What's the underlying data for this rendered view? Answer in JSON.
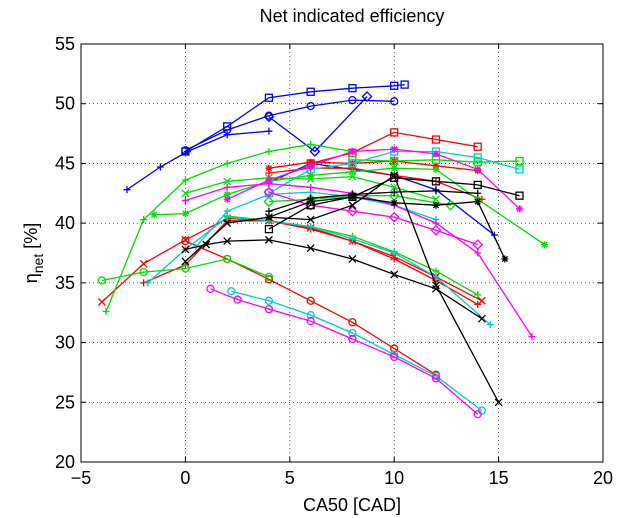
{
  "chart_data": {
    "type": "line",
    "title": "Net indicated efficiency",
    "xlabel": "CA50 [CAD]",
    "ylabel_main": "η",
    "ylabel_sub": "net",
    "ylabel_suffix": " [%]",
    "xlim": [
      -5,
      20
    ],
    "ylim": [
      20,
      55
    ],
    "xticks": [
      -5,
      0,
      5,
      10,
      15,
      20
    ],
    "yticks": [
      20,
      25,
      30,
      35,
      40,
      45,
      50,
      55
    ],
    "grid": true,
    "series": [
      {
        "color": "#0000ff",
        "marker": "+",
        "x": [
          -2.8,
          -1.2,
          0.1,
          2.0,
          4.0
        ],
        "y": [
          42.8,
          44.7,
          46.0,
          47.4,
          47.7
        ]
      },
      {
        "color": "#0000ff",
        "marker": "square",
        "x": [
          0.0,
          2.0,
          4.0,
          6.0,
          8.0,
          10.0,
          10.5
        ],
        "y": [
          46.0,
          48.1,
          50.5,
          51.0,
          51.3,
          51.5,
          51.6
        ]
      },
      {
        "color": "#0000ff",
        "marker": "circle",
        "x": [
          0.0,
          2.0,
          4.0,
          6.0,
          8.0,
          10.0
        ],
        "y": [
          46.1,
          47.8,
          49.0,
          49.8,
          50.3,
          50.2
        ]
      },
      {
        "color": "#0000ff",
        "marker": "diamond",
        "x": [
          4.0,
          6.2,
          8.7
        ],
        "y": [
          48.9,
          46.0,
          50.6
        ]
      },
      {
        "color": "#0000ff",
        "marker": "+",
        "x": [
          4.0,
          6.0,
          8.0,
          10.0,
          12.0,
          14.8
        ],
        "y": [
          43.4,
          45.0,
          44.5,
          44.0,
          42.8,
          39.0
        ]
      },
      {
        "color": "#ff0000",
        "marker": "square",
        "x": [
          6.0,
          8.0,
          10.0,
          12.0,
          14.0
        ],
        "y": [
          45.0,
          45.9,
          47.6,
          47.0,
          46.4
        ]
      },
      {
        "color": "#ff0000",
        "marker": "asterisk",
        "x": [
          4.0,
          6.0,
          8.0,
          10.0,
          12.0,
          14.0
        ],
        "y": [
          44.6,
          45.1,
          45.0,
          45.2,
          44.8,
          44.4
        ]
      },
      {
        "color": "#ff0000",
        "marker": "+",
        "x": [
          4.0,
          6.0,
          8.0,
          10.0,
          12.0,
          14.2
        ],
        "y": [
          44.2,
          44.6,
          44.6,
          44.0,
          43.5,
          42.0
        ]
      },
      {
        "color": "#ff0000",
        "marker": "x",
        "x": [
          -4.0,
          -2.0,
          0.0,
          2.0,
          4.0,
          6.0,
          8.0,
          10.0,
          12.0,
          14.2
        ],
        "y": [
          33.4,
          36.6,
          38.6,
          40.4,
          40.2,
          39.6,
          38.5,
          37.2,
          35.5,
          33.5
        ]
      },
      {
        "color": "#ff0000",
        "marker": "circle",
        "x": [
          0.0,
          2.0,
          4.0,
          6.0,
          8.0,
          10.0,
          12.0
        ],
        "y": [
          38.5,
          37.0,
          35.3,
          33.5,
          31.7,
          29.5,
          27.3
        ]
      },
      {
        "color": "#ff0000",
        "marker": "+",
        "x": [
          -2.0,
          0.0,
          2.0,
          4.0,
          6.0,
          8.0,
          10.0,
          12.0,
          14.0
        ],
        "y": [
          35.0,
          36.5,
          40.2,
          40.2,
          39.5,
          38.5,
          37.0,
          35.2,
          33.2
        ]
      },
      {
        "color": "#00dd00",
        "marker": "+",
        "x": [
          -3.8,
          -2.0,
          0.0,
          2.0,
          4.0,
          6.0,
          8.0
        ],
        "y": [
          32.6,
          40.3,
          43.6,
          45.0,
          46.0,
          46.6,
          46.0
        ]
      },
      {
        "color": "#00dd00",
        "marker": "asterisk",
        "x": [
          -1.5,
          0.0,
          2.0,
          4.0,
          6.0,
          8.0,
          10.0,
          12.0,
          14.0,
          17.2
        ],
        "y": [
          40.7,
          40.8,
          42.4,
          43.5,
          44.0,
          44.3,
          44.6,
          44.5,
          42.0,
          38.2
        ]
      },
      {
        "color": "#00dd00",
        "marker": "square",
        "x": [
          8.0,
          10.0,
          12.0,
          14.0,
          16.0
        ],
        "y": [
          45.3,
          45.2,
          45.3,
          45.1,
          45.2
        ]
      },
      {
        "color": "#00dd00",
        "marker": "diamond",
        "x": [
          4.0,
          6.0,
          8.0,
          10.0,
          12.7
        ],
        "y": [
          41.8,
          42.0,
          42.3,
          42.3,
          41.5
        ]
      },
      {
        "color": "#00dd00",
        "marker": "circle",
        "x": [
          -4.0,
          -2.0,
          0.0,
          2.0,
          4.0
        ],
        "y": [
          35.2,
          35.9,
          36.2,
          37.0,
          35.5
        ]
      },
      {
        "color": "#00dd00",
        "marker": "x",
        "x": [
          0.0,
          2.0,
          4.0,
          6.0,
          8.0,
          10.0,
          12.0
        ],
        "y": [
          42.5,
          43.5,
          43.8,
          43.7,
          43.9,
          43.0,
          42.0
        ]
      },
      {
        "color": "#00dd00",
        "marker": "+",
        "x": [
          2.0,
          4.0,
          6.0,
          8.0,
          10.0,
          12.0,
          14.0
        ],
        "y": [
          40.6,
          40.2,
          39.7,
          38.9,
          37.6,
          36.0,
          34.0
        ]
      },
      {
        "color": "#00cccc",
        "marker": "circle",
        "x": [
          2.2,
          4.0,
          6.0,
          8.0,
          10.0,
          12.0,
          14.2
        ],
        "y": [
          34.3,
          33.5,
          32.3,
          30.8,
          29.0,
          27.2,
          24.3
        ]
      },
      {
        "color": "#00cccc",
        "marker": "+",
        "x": [
          -1.8,
          0.0,
          2.0,
          4.0,
          6.0,
          8.0,
          10.0,
          12.0,
          14.6
        ],
        "y": [
          35.0,
          37.8,
          40.5,
          40.2,
          39.7,
          38.7,
          37.5,
          35.5,
          31.5
        ]
      },
      {
        "color": "#00cccc",
        "marker": "square",
        "x": [
          4.0,
          6.0,
          8.0,
          10.0,
          12.0,
          14.0,
          16.0
        ],
        "y": [
          42.5,
          44.5,
          45.0,
          46.0,
          46.0,
          45.5,
          44.5
        ]
      },
      {
        "color": "#00cccc",
        "marker": "+",
        "x": [
          0.5,
          2.0,
          4.0,
          6.0,
          8.0,
          10.0,
          12.0
        ],
        "y": [
          38.0,
          41.0,
          42.4,
          42.6,
          42.2,
          41.5,
          40.3
        ]
      },
      {
        "color": "#ff00ff",
        "marker": "circle",
        "x": [
          1.2,
          2.5,
          4.0,
          6.0,
          8.0,
          10.0,
          12.0,
          14.0
        ],
        "y": [
          34.5,
          33.6,
          32.8,
          31.8,
          30.3,
          28.8,
          27.0,
          24.0
        ]
      },
      {
        "color": "#ff00ff",
        "marker": "diamond",
        "x": [
          4.0,
          6.0,
          8.0,
          10.0,
          12.0,
          14.0
        ],
        "y": [
          42.6,
          41.5,
          41.0,
          40.5,
          39.4,
          38.2
        ]
      },
      {
        "color": "#ff00ff",
        "marker": "+",
        "x": [
          0.0,
          2.0,
          4.0,
          6.0,
          8.0,
          10.0,
          12.0,
          14.0,
          16.6
        ],
        "y": [
          41.9,
          43.0,
          43.3,
          43.0,
          42.5,
          41.5,
          40.0,
          37.5,
          30.5
        ]
      },
      {
        "color": "#ff00ff",
        "marker": "asterisk",
        "x": [
          2.0,
          4.0,
          6.0,
          8.0,
          10.0,
          12.0,
          14.0,
          16.0
        ],
        "y": [
          42.0,
          43.6,
          44.8,
          46.0,
          46.2,
          45.8,
          44.5,
          41.2
        ]
      },
      {
        "color": "#000000",
        "marker": "x",
        "x": [
          0.0,
          1.0,
          2.0,
          4.0,
          6.0,
          8.0,
          10.0,
          12.0,
          14.2
        ],
        "y": [
          37.8,
          38.2,
          38.5,
          38.6,
          37.9,
          37.0,
          35.7,
          34.5,
          32.0
        ]
      },
      {
        "color": "#000000",
        "marker": "square",
        "x": [
          4.0,
          6.0,
          8.0,
          10.0,
          12.0,
          14.0,
          16.0
        ],
        "y": [
          39.5,
          41.5,
          42.2,
          43.8,
          43.5,
          43.2,
          42.3
        ]
      },
      {
        "color": "#000000",
        "marker": "asterisk",
        "x": [
          4.0,
          6.0,
          8.0,
          10.0,
          12.0,
          14.0,
          15.3
        ],
        "y": [
          40.5,
          41.8,
          42.2,
          41.7,
          41.5,
          41.8,
          37.0
        ]
      },
      {
        "color": "#000000",
        "marker": "x",
        "x": [
          0.0,
          2.0,
          4.0,
          6.0,
          8.0,
          10.0,
          12.0,
          15.0
        ],
        "y": [
          36.8,
          40.0,
          40.5,
          40.3,
          41.5,
          44.0,
          34.8,
          25.0
        ]
      },
      {
        "color": "#000000",
        "marker": "+",
        "x": [
          4.0,
          6.0,
          8.0,
          10.0,
          12.0,
          14.0
        ],
        "y": [
          41.0,
          42.1,
          42.4,
          42.6,
          42.7,
          42.5
        ]
      }
    ]
  }
}
